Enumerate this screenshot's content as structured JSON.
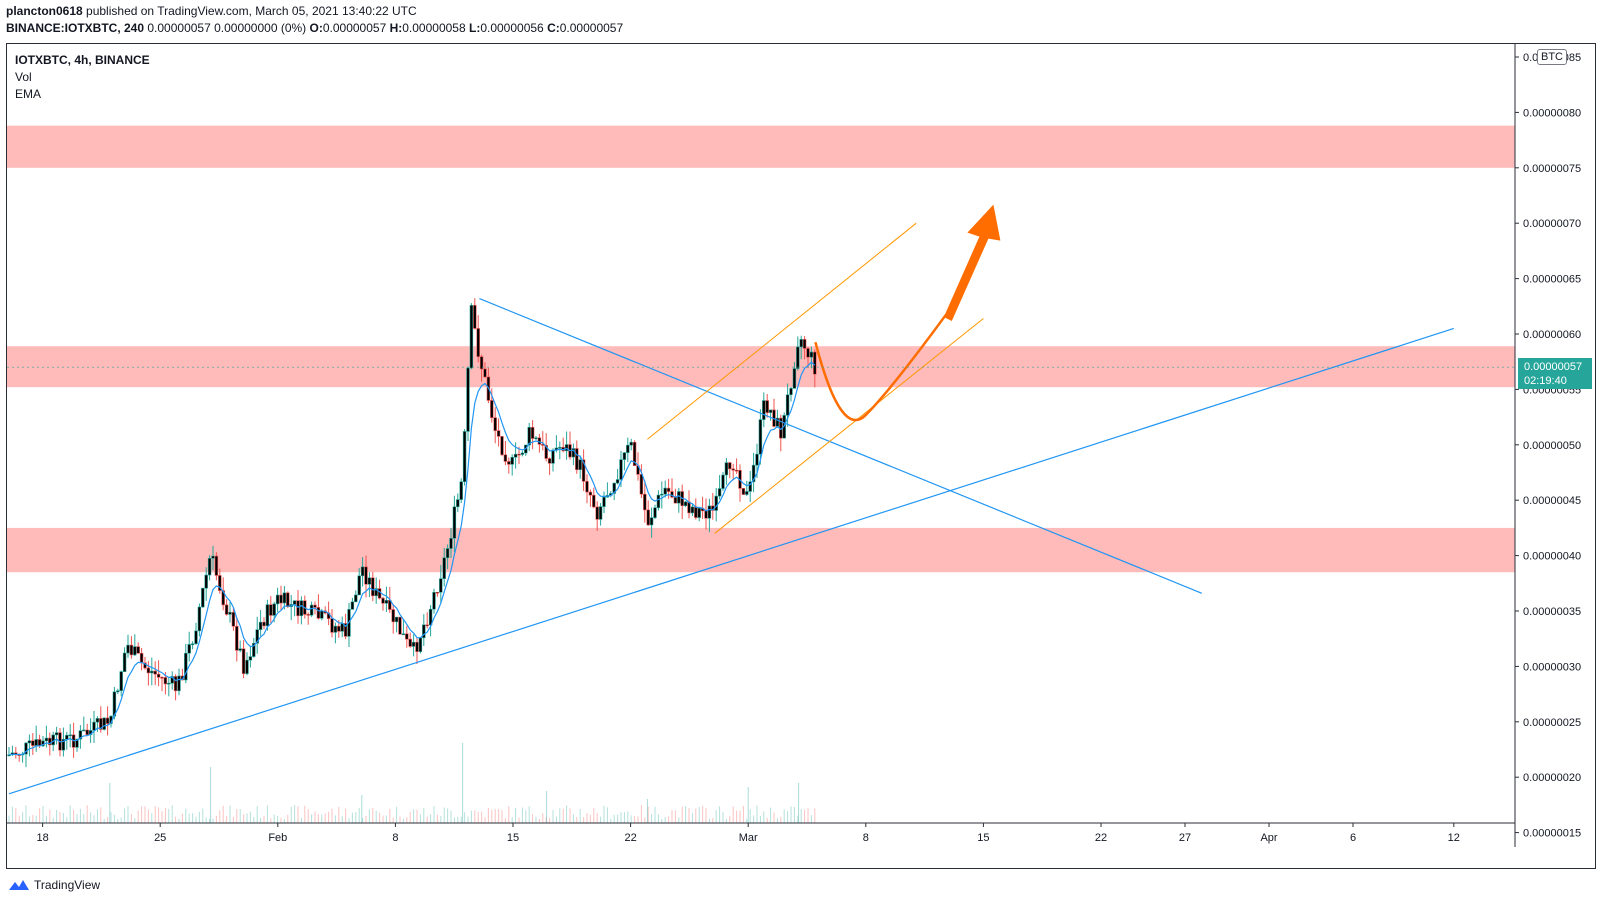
{
  "header": {
    "author": "plancton0618",
    "published": " published on TradingView.com, March 05, 2021 13:40:22 UTC",
    "symbol_line": "BINANCE:IOTXBTC, 240",
    "quote": " 0.00000057 0.00000000 (0%) ",
    "o_label": "O:",
    "o_value": "0.00000057",
    "h_label": " H:",
    "h_value": "0.00000058",
    "l_label": " L:",
    "l_value": "0.00000056",
    "c_label": " C:",
    "c_value": "0.00000057"
  },
  "legend": {
    "symbol": "IOTXBTC, 4h, BINANCE",
    "vol": "Vol",
    "ema": "EMA"
  },
  "currency_badge": "BTC",
  "last_price": {
    "value": "0.00000057",
    "countdown": "02:19:40"
  },
  "footer": {
    "brand": "TradingView"
  },
  "colors": {
    "up": "#26a69a",
    "down": "#ef5350",
    "ema": "#2196f3",
    "trend": "#2196f3",
    "channel": "#ff9800",
    "zone": "#ffb3b3",
    "arrow": "#ff6d00"
  },
  "chart_data": {
    "type": "candlestick",
    "y_ticks": [
      "0.00000085",
      "0.00000080",
      "0.00000075",
      "0.00000070",
      "0.00000065",
      "0.00000060",
      "0.00000055",
      "0.00000050",
      "0.00000045",
      "0.00000040",
      "0.00000035",
      "0.00000030",
      "0.00000025",
      "0.00000020",
      "0.00000015"
    ],
    "x_ticks": [
      "18",
      "25",
      "Feb",
      "8",
      "15",
      "22",
      "Mar",
      "8",
      "15",
      "22",
      "27",
      "Apr",
      "6",
      "12"
    ],
    "ylim": [
      1.45e-07,
      8.65e-07
    ],
    "resistance_zones": [
      [
        7.5e-07,
        7.88e-07
      ],
      [
        5.52e-07,
        5.89e-07
      ],
      [
        3.85e-07,
        4.25e-07
      ]
    ],
    "price_path": [
      [
        "2021-01-16",
        2.2e-07
      ],
      [
        "2021-01-18",
        2.3e-07
      ],
      [
        "2021-01-20",
        2.35e-07
      ],
      [
        "2021-01-22",
        2.5e-07
      ],
      [
        "2021-01-23",
        3.2e-07
      ],
      [
        "2021-01-24",
        3e-07
      ],
      [
        "2021-01-26",
        2.8e-07
      ],
      [
        "2021-01-27",
        3.3e-07
      ],
      [
        "2021-01-28",
        4e-07
      ],
      [
        "2021-01-29",
        3.5e-07
      ],
      [
        "2021-01-30",
        3e-07
      ],
      [
        "2021-01-31",
        3.4e-07
      ],
      [
        "2021-02-01",
        3.6e-07
      ],
      [
        "2021-02-04",
        3.4e-07
      ],
      [
        "2021-02-05",
        3.3e-07
      ],
      [
        "2021-02-06",
        3.9e-07
      ],
      [
        "2021-02-07",
        3.6e-07
      ],
      [
        "2021-02-08",
        3.4e-07
      ],
      [
        "2021-02-09",
        3.1e-07
      ],
      [
        "2021-02-10",
        3.5e-07
      ],
      [
        "2021-02-11",
        4e-07
      ],
      [
        "2021-02-12",
        4.7e-07
      ],
      [
        "2021-02-12T12",
        6.2e-07
      ],
      [
        "2021-02-13",
        5.8e-07
      ],
      [
        "2021-02-14",
        5.1e-07
      ],
      [
        "2021-02-15",
        4.8e-07
      ],
      [
        "2021-02-16",
        5.1e-07
      ],
      [
        "2021-02-17",
        4.9e-07
      ],
      [
        "2021-02-18",
        5e-07
      ],
      [
        "2021-02-19",
        4.8e-07
      ],
      [
        "2021-02-20",
        4.4e-07
      ],
      [
        "2021-02-21",
        4.7e-07
      ],
      [
        "2021-02-22",
        5e-07
      ],
      [
        "2021-02-23",
        4.3e-07
      ],
      [
        "2021-02-24",
        4.6e-07
      ],
      [
        "2021-02-25",
        4.5e-07
      ],
      [
        "2021-02-26",
        4.4e-07
      ],
      [
        "2021-02-27",
        4.4e-07
      ],
      [
        "2021-02-28",
        4.9e-07
      ],
      [
        "2021-03-01",
        4.5e-07
      ],
      [
        "2021-03-02",
        5.4e-07
      ],
      [
        "2021-03-03",
        5.1e-07
      ],
      [
        "2021-03-04",
        6e-07
      ],
      [
        "2021-03-05",
        5.7e-07
      ]
    ],
    "volume": [
      [
        "2021-01-22",
        0.5
      ],
      [
        "2021-01-28",
        0.7
      ],
      [
        "2021-02-06",
        0.35
      ],
      [
        "2021-02-12",
        1.0
      ],
      [
        "2021-02-17",
        0.4
      ],
      [
        "2021-02-23",
        0.3
      ],
      [
        "2021-03-01",
        0.45
      ],
      [
        "2021-03-04",
        0.5
      ]
    ],
    "trendlines": [
      {
        "from": [
          "2021-01-16",
          1.85e-07
        ],
        "to": [
          "2021-04-12",
          6.05e-07
        ]
      },
      {
        "from": [
          "2021-02-13",
          6.32e-07
        ],
        "to": [
          "2021-03-28",
          3.66e-07
        ]
      }
    ],
    "channel": [
      {
        "from": [
          "2021-02-23",
          5.05e-07
        ],
        "to": [
          "2021-03-11",
          7e-07
        ]
      },
      {
        "from": [
          "2021-02-27",
          4.2e-07
        ],
        "to": [
          "2021-03-15",
          6.14e-07
        ]
      }
    ],
    "projection": {
      "dip": [
        "2021-03-08",
        5.45e-07
      ],
      "target": [
        "2021-03-15",
        7.15e-07
      ]
    }
  }
}
